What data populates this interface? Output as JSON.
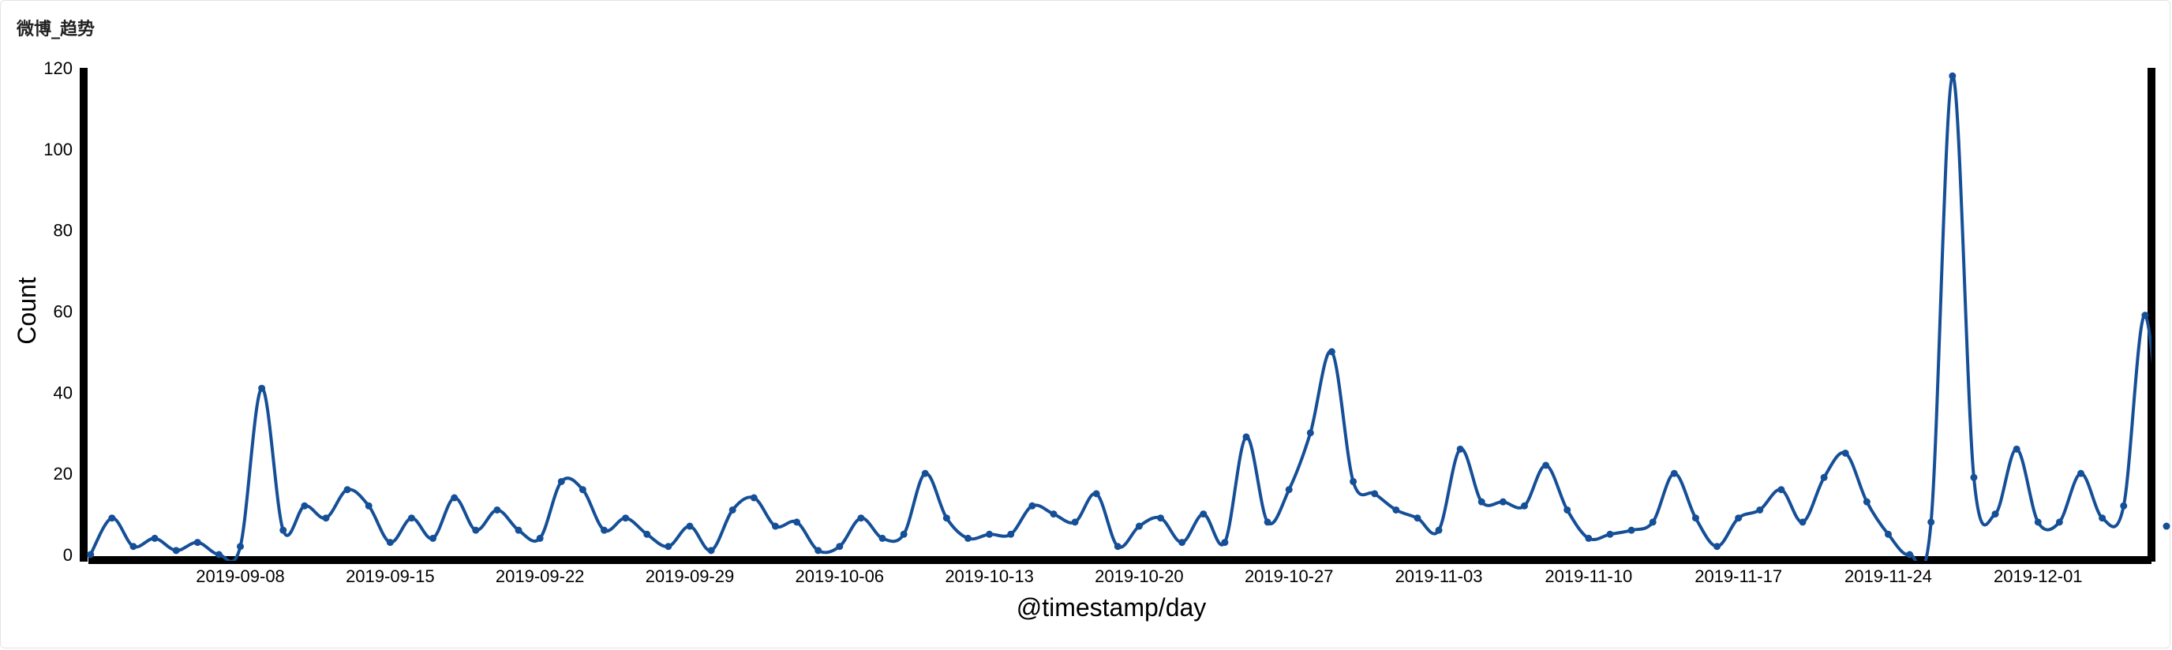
{
  "panel": {
    "title": "微博_趋势"
  },
  "chart_data": {
    "type": "line",
    "title": "",
    "xlabel": "@timestamp/day",
    "ylabel": "Count",
    "ylim": [
      0,
      120
    ],
    "yticks": [
      0,
      20,
      40,
      60,
      80,
      100,
      120
    ],
    "x_tick_labels": [
      "2019-09-08",
      "2019-09-15",
      "2019-09-22",
      "2019-09-29",
      "2019-10-06",
      "2019-10-13",
      "2019-10-20",
      "2019-10-27",
      "2019-11-03",
      "2019-11-10",
      "2019-11-17",
      "2019-11-24",
      "2019-12-01"
    ],
    "x_tick_positions": [
      7,
      14,
      21,
      28,
      35,
      42,
      49,
      56,
      63,
      70,
      77,
      84,
      91
    ],
    "x_range": [
      -0.1,
      96.3
    ],
    "grid": false,
    "line_color": "#154f97",
    "series": [
      {
        "values": [
          0,
          9,
          2,
          4,
          1,
          3,
          0,
          2,
          41,
          6,
          12,
          9,
          16,
          12,
          3,
          9,
          4,
          14,
          6,
          11,
          6,
          4,
          18,
          16,
          6,
          9,
          5,
          2,
          7,
          1,
          11,
          14,
          7,
          8,
          1,
          2,
          9,
          4,
          5,
          20,
          9,
          4,
          5,
          5,
          12,
          10,
          8,
          15,
          2,
          7,
          9,
          3,
          10,
          3,
          29,
          8,
          16,
          30,
          50,
          18,
          15,
          11,
          9,
          6,
          26,
          13,
          13,
          12,
          22,
          11,
          4,
          5,
          6,
          8,
          20,
          9,
          2,
          9,
          11,
          16,
          8,
          19,
          25,
          13,
          5,
          0,
          8,
          118,
          19,
          10,
          26,
          8,
          8,
          20,
          9,
          12,
          59,
          7
        ]
      }
    ]
  }
}
